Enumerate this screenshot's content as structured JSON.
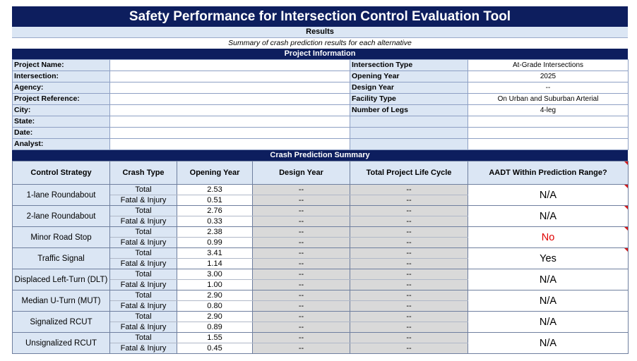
{
  "header": {
    "title": "Safety Performance for Intersection Control Evaluation Tool",
    "results": "Results",
    "summary_text": "Summary of crash prediction results for each alternative",
    "project_info_band": "Project Information",
    "crash_summary_band": "Crash Prediction Summary"
  },
  "project_info": {
    "left_labels": [
      "Project Name:",
      "Intersection:",
      "Agency:",
      "Project Reference:",
      "City:",
      "State:",
      "Date:",
      "Analyst:"
    ],
    "right": [
      {
        "label": "Intersection Type",
        "value": "At-Grade Intersections"
      },
      {
        "label": "Opening Year",
        "value": "2025"
      },
      {
        "label": "Design Year",
        "value": "--"
      },
      {
        "label": "Facility Type",
        "value": "On Urban and Suburban Arterial"
      },
      {
        "label": "Number of Legs",
        "value": "4-leg"
      }
    ]
  },
  "crash_table": {
    "headers": [
      "Control Strategy",
      "Crash Type",
      "Opening Year",
      "Design Year",
      "Total Project Life Cycle",
      "AADT Within Prediction Range?"
    ],
    "rows": [
      {
        "strategy": "1-lane Roundabout",
        "total_label": "Total",
        "fi_label": "Fatal & Injury",
        "open_total": "2.53",
        "open_fi": "0.51",
        "design_total": "--",
        "design_fi": "--",
        "life_total": "--",
        "life_fi": "--",
        "aadt": "N/A"
      },
      {
        "strategy": "2-lane Roundabout",
        "total_label": "Total",
        "fi_label": "Fatal & Injury",
        "open_total": "2.76",
        "open_fi": "0.33",
        "design_total": "--",
        "design_fi": "--",
        "life_total": "--",
        "life_fi": "--",
        "aadt": "N/A"
      },
      {
        "strategy": "Minor Road Stop",
        "total_label": "Total",
        "fi_label": "Fatal & Injury",
        "open_total": "2.38",
        "open_fi": "0.99",
        "design_total": "--",
        "design_fi": "--",
        "life_total": "--",
        "life_fi": "--",
        "aadt": "No"
      },
      {
        "strategy": "Traffic Signal",
        "total_label": "Total",
        "fi_label": "Fatal & Injury",
        "open_total": "3.41",
        "open_fi": "1.14",
        "design_total": "--",
        "design_fi": "--",
        "life_total": "--",
        "life_fi": "--",
        "aadt": "Yes"
      },
      {
        "strategy": "Displaced Left-Turn (DLT)",
        "total_label": "Total",
        "fi_label": "Fatal & Injury",
        "open_total": "3.00",
        "open_fi": "1.00",
        "design_total": "--",
        "design_fi": "--",
        "life_total": "--",
        "life_fi": "--",
        "aadt": "N/A"
      },
      {
        "strategy": "Median U-Turn (MUT)",
        "total_label": "Total",
        "fi_label": "Fatal & Injury",
        "open_total": "2.90",
        "open_fi": "0.80",
        "design_total": "--",
        "design_fi": "--",
        "life_total": "--",
        "life_fi": "--",
        "aadt": "N/A"
      },
      {
        "strategy": "Signalized RCUT",
        "total_label": "Total",
        "fi_label": "Fatal & Injury",
        "open_total": "2.90",
        "open_fi": "0.89",
        "design_total": "--",
        "design_fi": "--",
        "life_total": "--",
        "life_fi": "--",
        "aadt": "N/A"
      },
      {
        "strategy": "Unsignalized RCUT",
        "total_label": "Total",
        "fi_label": "Fatal & Injury",
        "open_total": "1.55",
        "open_fi": "0.45",
        "design_total": "--",
        "design_fi": "--",
        "life_total": "--",
        "life_fi": "--",
        "aadt": "N/A"
      }
    ]
  },
  "colors": {
    "navy": "#0d1e5e",
    "light_blue": "#dbe6f4",
    "gray": "#d9d9d9",
    "red_text": "#e00000",
    "comment_marker": "#d61a1a"
  },
  "icons": {
    "comment_marker": "comment-indicator-icon"
  }
}
